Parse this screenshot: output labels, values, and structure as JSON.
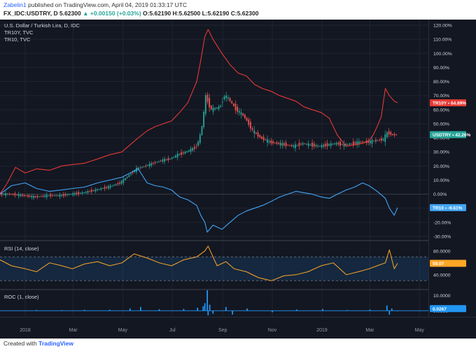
{
  "header": {
    "author": "Zabelin1",
    "published": "published on TradingView.com, April 04, 2019 01:33:17 UTC",
    "symbol": "FX_IDC:USDTRY, D",
    "last": "5.62300",
    "change": "▲ +0.00150 (+0.03%)",
    "ohlc": "O:5.62190 H:5.62500 L:5.62190 C:5.62300"
  },
  "footer": {
    "created_with": "Created with",
    "brand": "TradingView"
  },
  "colors": {
    "background": "#131722",
    "grid": "#1f2433",
    "up": "#26a69a",
    "down": "#ef5350",
    "tr10y": "#e53935",
    "tr10": "#42a5f5",
    "rsi": "#ffa726",
    "roc": "#2196f3"
  },
  "chart_data": [
    {
      "type": "line",
      "legend": [
        "U.S. Dollar / Turkish Lira, D, IDC",
        "TR10Y, TVC",
        "TR10, TVC"
      ],
      "y_ticks": [
        "120.00%",
        "110.00%",
        "100.00%",
        "90.00%",
        "80.00%",
        "70.00%",
        "60.00%",
        "50.00%",
        "40.00%",
        "30.00%",
        "20.00%",
        "10.00%",
        "0.00%",
        "-10.00%",
        "-20.00%",
        "-30.00%"
      ],
      "ylim": [
        -32,
        124
      ],
      "x_ticks": [
        "2018",
        "Mar",
        "May",
        "Jul",
        "Sep",
        "Nov",
        "2019",
        "Mar",
        "May"
      ],
      "series": [
        {
          "name": "TR10Y",
          "badge": "TR10Y • 64.89%",
          "last": 64.89,
          "x": [
            "2017-12-01",
            "2017-12-10",
            "2017-12-20",
            "2018-01-01",
            "2018-01-15",
            "2018-01-31",
            "2018-02-15",
            "2018-02-28",
            "2018-03-15",
            "2018-03-31",
            "2018-04-15",
            "2018-04-30",
            "2018-05-10",
            "2018-05-20",
            "2018-05-31",
            "2018-06-10",
            "2018-06-20",
            "2018-06-30",
            "2018-07-10",
            "2018-07-20",
            "2018-07-31",
            "2018-08-05",
            "2018-08-10",
            "2018-08-14",
            "2018-08-20",
            "2018-08-31",
            "2018-09-10",
            "2018-09-20",
            "2018-09-30",
            "2018-10-10",
            "2018-10-20",
            "2018-10-31",
            "2018-11-10",
            "2018-11-20",
            "2018-11-30",
            "2018-12-10",
            "2018-12-20",
            "2018-12-31",
            "2019-01-10",
            "2019-01-20",
            "2019-01-31",
            "2019-02-10",
            "2019-02-20",
            "2019-02-28",
            "2019-03-05",
            "2019-03-10",
            "2019-03-15",
            "2019-03-20",
            "2019-03-25",
            "2019-03-31",
            "2019-04-04"
          ],
          "y": [
            0,
            8,
            19,
            15,
            18,
            17,
            20,
            21,
            22,
            25,
            28,
            30,
            35,
            40,
            45,
            48,
            50,
            52,
            58,
            65,
            80,
            95,
            112,
            117,
            110,
            100,
            92,
            86,
            84,
            78,
            75,
            73,
            70,
            68,
            66,
            62,
            60,
            58,
            54,
            42,
            34,
            35,
            36,
            38,
            42,
            48,
            55,
            75,
            70,
            66,
            65
          ]
        },
        {
          "name": "USDTRY",
          "badge": "USDTRY • 42.26%",
          "last": 42.26,
          "x": [
            "2017-12-01",
            "2017-12-15",
            "2018-01-01",
            "2018-01-15",
            "2018-01-31",
            "2018-02-15",
            "2018-02-28",
            "2018-03-15",
            "2018-03-31",
            "2018-04-15",
            "2018-04-30",
            "2018-05-10",
            "2018-05-20",
            "2018-05-31",
            "2018-06-10",
            "2018-06-20",
            "2018-06-30",
            "2018-07-10",
            "2018-07-20",
            "2018-07-31",
            "2018-08-05",
            "2018-08-10",
            "2018-08-13",
            "2018-08-20",
            "2018-08-31",
            "2018-09-05",
            "2018-09-10",
            "2018-09-20",
            "2018-09-30",
            "2018-10-10",
            "2018-10-20",
            "2018-10-31",
            "2018-11-10",
            "2018-11-20",
            "2018-11-30",
            "2018-12-10",
            "2018-12-20",
            "2018-12-31",
            "2019-01-10",
            "2019-01-20",
            "2019-01-31",
            "2019-02-10",
            "2019-02-20",
            "2019-02-28",
            "2019-03-10",
            "2019-03-20",
            "2019-03-25",
            "2019-03-31",
            "2019-04-04"
          ],
          "y": [
            0,
            0,
            -1,
            -2,
            -1,
            -1,
            0,
            1,
            3,
            5,
            8,
            13,
            18,
            20,
            22,
            24,
            25,
            28,
            30,
            33,
            38,
            52,
            70,
            60,
            62,
            70,
            68,
            60,
            55,
            45,
            40,
            37,
            36,
            35,
            34,
            36,
            35,
            34,
            35,
            36,
            35,
            36,
            37,
            37,
            38,
            39,
            44,
            42,
            42.26
          ]
        },
        {
          "name": "TR10",
          "badge": "TR10 • -9.61%",
          "last": -9.61,
          "x": [
            "2017-12-01",
            "2017-12-15",
            "2018-01-01",
            "2018-01-15",
            "2018-01-31",
            "2018-02-15",
            "2018-02-28",
            "2018-03-15",
            "2018-03-31",
            "2018-04-15",
            "2018-04-30",
            "2018-05-10",
            "2018-05-20",
            "2018-05-31",
            "2018-06-10",
            "2018-06-20",
            "2018-06-30",
            "2018-07-10",
            "2018-07-20",
            "2018-07-31",
            "2018-08-05",
            "2018-08-10",
            "2018-08-13",
            "2018-08-20",
            "2018-08-31",
            "2018-09-10",
            "2018-09-20",
            "2018-09-30",
            "2018-10-10",
            "2018-10-20",
            "2018-10-31",
            "2018-11-10",
            "2018-11-20",
            "2018-11-30",
            "2018-12-10",
            "2018-12-20",
            "2018-12-31",
            "2019-01-10",
            "2019-01-20",
            "2019-01-31",
            "2019-02-10",
            "2019-02-20",
            "2019-02-28",
            "2019-03-10",
            "2019-03-20",
            "2019-03-25",
            "2019-03-31",
            "2019-04-04"
          ],
          "y": [
            0,
            6,
            8,
            4,
            2,
            3,
            4,
            5,
            8,
            10,
            12,
            15,
            18,
            8,
            6,
            5,
            3,
            -2,
            -4,
            -8,
            -15,
            -20,
            -27,
            -22,
            -25,
            -20,
            -15,
            -12,
            -10,
            -8,
            -5,
            -2,
            0,
            2,
            1,
            0,
            -2,
            -3,
            0,
            3,
            5,
            8,
            6,
            2,
            -3,
            -10,
            -15,
            -9.61
          ]
        }
      ]
    },
    {
      "type": "line",
      "legend": "RSI (14, close)",
      "badge": "59.07",
      "last": 59.07,
      "y_ticks": [
        "80.0000",
        "40.0000"
      ],
      "levels": [
        70,
        30
      ],
      "ylim": [
        15,
        95
      ],
      "series": [
        {
          "name": "RSI",
          "x": [
            "2017-12-01",
            "2017-12-15",
            "2018-01-01",
            "2018-01-15",
            "2018-01-31",
            "2018-02-15",
            "2018-02-28",
            "2018-03-15",
            "2018-03-31",
            "2018-04-15",
            "2018-04-30",
            "2018-05-15",
            "2018-05-31",
            "2018-06-15",
            "2018-06-30",
            "2018-07-15",
            "2018-07-31",
            "2018-08-10",
            "2018-08-14",
            "2018-08-25",
            "2018-09-05",
            "2018-09-15",
            "2018-09-30",
            "2018-10-15",
            "2018-10-31",
            "2018-11-15",
            "2018-11-30",
            "2018-12-15",
            "2018-12-31",
            "2019-01-15",
            "2019-01-31",
            "2019-02-15",
            "2019-02-28",
            "2019-03-10",
            "2019-03-20",
            "2019-03-25",
            "2019-03-31",
            "2019-04-04"
          ],
          "y": [
            65,
            55,
            50,
            45,
            60,
            55,
            50,
            58,
            62,
            55,
            60,
            75,
            68,
            60,
            55,
            65,
            70,
            80,
            88,
            55,
            62,
            50,
            45,
            35,
            30,
            38,
            40,
            45,
            55,
            60,
            40,
            45,
            50,
            55,
            60,
            82,
            50,
            59.07
          ]
        }
      ]
    },
    {
      "type": "bar",
      "legend": "ROC (1, close)",
      "badge": "0.0267",
      "last": 0.0267,
      "y_ticks": [
        "10.0000",
        "0.0000"
      ],
      "ylim": [
        -4,
        14
      ],
      "x": [
        "2018-01-15",
        "2018-02-15",
        "2018-03-15",
        "2018-04-15",
        "2018-05-10",
        "2018-05-23",
        "2018-06-15",
        "2018-07-15",
        "2018-08-01",
        "2018-08-08",
        "2018-08-10",
        "2018-08-13",
        "2018-08-14",
        "2018-08-16",
        "2018-08-20",
        "2018-09-05",
        "2018-09-13",
        "2018-10-01",
        "2018-11-01",
        "2018-12-01",
        "2019-01-02",
        "2019-02-01",
        "2019-03-01",
        "2019-03-22",
        "2019-03-25",
        "2019-03-28",
        "2019-04-04"
      ],
      "values": [
        0.5,
        0.4,
        0.6,
        0.7,
        1.5,
        2.5,
        1.0,
        1.2,
        2.0,
        3.0,
        5.0,
        14.0,
        -3.0,
        4.0,
        -2.0,
        2.5,
        -2.5,
        1.5,
        -1.0,
        0.8,
        1.2,
        0.5,
        0.8,
        3.5,
        -2.5,
        1.5,
        0.0267
      ]
    }
  ]
}
